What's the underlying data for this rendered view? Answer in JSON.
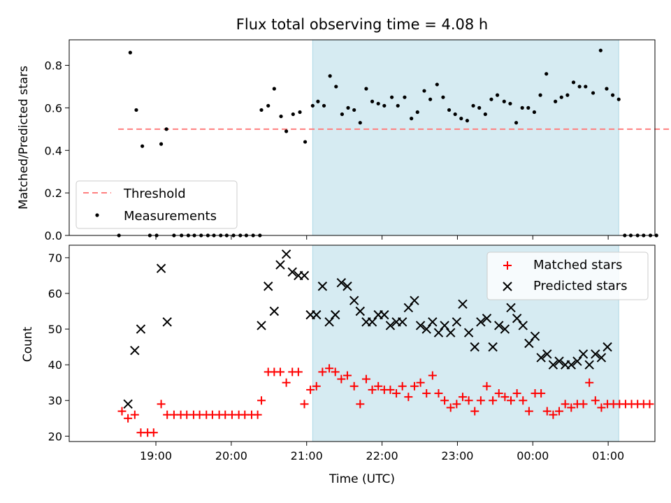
{
  "chart_data": [
    {
      "type": "scatter",
      "title": "Flux total observing time = 4.08 h",
      "xlabel": "",
      "ylabel": "Matched/Predicted stars",
      "ylim": [
        0,
        0.92
      ],
      "yticks": [
        0.0,
        0.2,
        0.4,
        0.6,
        0.8
      ],
      "ytick_labels": [
        "0.0",
        "0.2",
        "0.4",
        "0.6",
        "0.8"
      ],
      "x_unit": "hours since 18:00 UTC",
      "highlight": {
        "start": 3.08,
        "end": 7.14,
        "color": "#add8e6"
      },
      "legend_position": "lower-left",
      "threshold": {
        "name": "Threshold",
        "value": 0.5,
        "x_start": 0.5,
        "x_end": 8.9,
        "color": "#ff7f7f"
      },
      "series": [
        {
          "name": "Measurements",
          "color": "#000000",
          "points": [
            [
              0.51,
              0.0
            ],
            [
              0.66,
              0.86
            ],
            [
              0.74,
              0.59
            ],
            [
              0.82,
              0.42
            ],
            [
              0.92,
              0.0
            ],
            [
              1.01,
              0.0
            ],
            [
              1.07,
              0.43
            ],
            [
              1.14,
              0.5
            ],
            [
              1.24,
              0.0
            ],
            [
              1.34,
              0.0
            ],
            [
              1.43,
              0.0
            ],
            [
              1.51,
              0.0
            ],
            [
              1.6,
              0.0
            ],
            [
              1.69,
              0.0
            ],
            [
              1.77,
              0.0
            ],
            [
              1.86,
              0.0
            ],
            [
              1.94,
              0.0
            ],
            [
              2.03,
              0.0
            ],
            [
              2.12,
              0.0
            ],
            [
              2.2,
              0.0
            ],
            [
              2.29,
              0.0
            ],
            [
              2.38,
              0.0
            ],
            [
              2.4,
              0.59
            ],
            [
              2.49,
              0.61
            ],
            [
              2.57,
              0.69
            ],
            [
              2.66,
              0.56
            ],
            [
              2.73,
              0.49
            ],
            [
              2.82,
              0.57
            ],
            [
              2.91,
              0.58
            ],
            [
              2.98,
              0.44
            ],
            [
              3.08,
              0.61
            ],
            [
              3.15,
              0.63
            ],
            [
              3.23,
              0.61
            ],
            [
              3.31,
              0.75
            ],
            [
              3.39,
              0.7
            ],
            [
              3.47,
              0.57
            ],
            [
              3.55,
              0.6
            ],
            [
              3.63,
              0.59
            ],
            [
              3.71,
              0.53
            ],
            [
              3.79,
              0.69
            ],
            [
              3.87,
              0.63
            ],
            [
              3.95,
              0.62
            ],
            [
              4.03,
              0.61
            ],
            [
              4.13,
              0.65
            ],
            [
              4.21,
              0.61
            ],
            [
              4.3,
              0.65
            ],
            [
              4.39,
              0.55
            ],
            [
              4.47,
              0.58
            ],
            [
              4.56,
              0.68
            ],
            [
              4.64,
              0.64
            ],
            [
              4.73,
              0.71
            ],
            [
              4.81,
              0.65
            ],
            [
              4.89,
              0.59
            ],
            [
              4.97,
              0.57
            ],
            [
              5.05,
              0.55
            ],
            [
              5.13,
              0.54
            ],
            [
              5.21,
              0.61
            ],
            [
              5.29,
              0.6
            ],
            [
              5.37,
              0.57
            ],
            [
              5.45,
              0.64
            ],
            [
              5.53,
              0.66
            ],
            [
              5.62,
              0.63
            ],
            [
              5.7,
              0.62
            ],
            [
              5.78,
              0.53
            ],
            [
              5.86,
              0.6
            ],
            [
              5.94,
              0.6
            ],
            [
              6.02,
              0.58
            ],
            [
              6.1,
              0.66
            ],
            [
              6.18,
              0.76
            ],
            [
              6.3,
              0.63
            ],
            [
              6.38,
              0.65
            ],
            [
              6.46,
              0.66
            ],
            [
              6.54,
              0.72
            ],
            [
              6.62,
              0.7
            ],
            [
              6.7,
              0.7
            ],
            [
              6.8,
              0.67
            ],
            [
              6.9,
              0.87
            ],
            [
              6.98,
              0.69
            ],
            [
              7.06,
              0.66
            ],
            [
              7.14,
              0.64
            ],
            [
              7.22,
              0.0
            ],
            [
              7.3,
              0.0
            ],
            [
              7.39,
              0.0
            ],
            [
              7.47,
              0.0
            ],
            [
              7.56,
              0.0
            ],
            [
              7.64,
              0.0
            ]
          ]
        }
      ]
    },
    {
      "type": "scatter",
      "title": "",
      "xlabel": "Time (UTC)",
      "ylabel": "Count",
      "ylim": [
        18.5,
        73.5
      ],
      "yticks": [
        20,
        30,
        40,
        50,
        60,
        70
      ],
      "ytick_labels": [
        "20",
        "30",
        "40",
        "50",
        "60",
        "70"
      ],
      "xlim": [
        -0.15,
        7.62
      ],
      "xticks": [
        1,
        2,
        3,
        4,
        5,
        6,
        7
      ],
      "xtick_labels": [
        "19:00",
        "20:00",
        "21:00",
        "22:00",
        "23:00",
        "00:00",
        "01:00"
      ],
      "legend_position": "upper-right",
      "series": [
        {
          "name": "Matched stars",
          "color": "#ff0000",
          "marker": "plus",
          "points": [
            [
              0.55,
              27
            ],
            [
              0.63,
              25
            ],
            [
              0.72,
              26
            ],
            [
              0.8,
              21
            ],
            [
              0.89,
              21
            ],
            [
              0.97,
              21
            ],
            [
              1.07,
              29
            ],
            [
              1.15,
              26
            ],
            [
              1.24,
              26
            ],
            [
              1.33,
              26
            ],
            [
              1.41,
              26
            ],
            [
              1.5,
              26
            ],
            [
              1.58,
              26
            ],
            [
              1.67,
              26
            ],
            [
              1.75,
              26
            ],
            [
              1.84,
              26
            ],
            [
              1.92,
              26
            ],
            [
              2.01,
              26
            ],
            [
              2.1,
              26
            ],
            [
              2.18,
              26
            ],
            [
              2.27,
              26
            ],
            [
              2.35,
              26
            ],
            [
              2.4,
              30
            ],
            [
              2.49,
              38
            ],
            [
              2.57,
              38
            ],
            [
              2.65,
              38
            ],
            [
              2.73,
              35
            ],
            [
              2.81,
              38
            ],
            [
              2.89,
              38
            ],
            [
              2.97,
              29
            ],
            [
              3.05,
              33
            ],
            [
              3.13,
              34
            ],
            [
              3.21,
              38
            ],
            [
              3.3,
              39
            ],
            [
              3.38,
              38
            ],
            [
              3.46,
              36
            ],
            [
              3.54,
              37
            ],
            [
              3.63,
              34
            ],
            [
              3.71,
              29
            ],
            [
              3.79,
              36
            ],
            [
              3.87,
              33
            ],
            [
              3.95,
              34
            ],
            [
              4.03,
              33
            ],
            [
              4.11,
              33
            ],
            [
              4.19,
              32
            ],
            [
              4.27,
              34
            ],
            [
              4.35,
              31
            ],
            [
              4.43,
              34
            ],
            [
              4.51,
              35
            ],
            [
              4.59,
              32
            ],
            [
              4.67,
              37
            ],
            [
              4.75,
              32
            ],
            [
              4.83,
              30
            ],
            [
              4.91,
              28
            ],
            [
              4.99,
              29
            ],
            [
              5.07,
              31
            ],
            [
              5.15,
              30
            ],
            [
              5.23,
              27
            ],
            [
              5.31,
              30
            ],
            [
              5.39,
              34
            ],
            [
              5.47,
              30
            ],
            [
              5.55,
              32
            ],
            [
              5.63,
              31
            ],
            [
              5.71,
              30
            ],
            [
              5.79,
              32
            ],
            [
              5.87,
              30
            ],
            [
              5.95,
              27
            ],
            [
              6.03,
              32
            ],
            [
              6.11,
              32
            ],
            [
              6.19,
              27
            ],
            [
              6.27,
              26
            ],
            [
              6.35,
              27
            ],
            [
              6.43,
              29
            ],
            [
              6.51,
              28
            ],
            [
              6.59,
              29
            ],
            [
              6.67,
              29
            ],
            [
              6.75,
              35
            ],
            [
              6.83,
              30
            ],
            [
              6.91,
              28
            ],
            [
              6.99,
              29
            ],
            [
              7.07,
              29
            ],
            [
              7.15,
              29
            ],
            [
              7.23,
              29
            ],
            [
              7.31,
              29
            ],
            [
              7.39,
              29
            ],
            [
              7.47,
              29
            ],
            [
              7.55,
              29
            ]
          ]
        },
        {
          "name": "Predicted stars",
          "color": "#000000",
          "marker": "x",
          "points": [
            [
              0.63,
              29
            ],
            [
              0.72,
              44
            ],
            [
              0.8,
              50
            ],
            [
              1.07,
              67
            ],
            [
              1.15,
              52
            ],
            [
              2.4,
              51
            ],
            [
              2.49,
              62
            ],
            [
              2.57,
              55
            ],
            [
              2.65,
              68
            ],
            [
              2.73,
              71
            ],
            [
              2.81,
              66
            ],
            [
              2.89,
              65
            ],
            [
              2.97,
              65
            ],
            [
              3.05,
              54
            ],
            [
              3.13,
              54
            ],
            [
              3.21,
              62
            ],
            [
              3.3,
              52
            ],
            [
              3.38,
              54
            ],
            [
              3.46,
              63
            ],
            [
              3.54,
              62
            ],
            [
              3.63,
              58
            ],
            [
              3.71,
              55
            ],
            [
              3.79,
              52
            ],
            [
              3.87,
              52
            ],
            [
              3.95,
              54
            ],
            [
              4.03,
              54
            ],
            [
              4.11,
              51
            ],
            [
              4.19,
              52
            ],
            [
              4.27,
              52
            ],
            [
              4.35,
              56
            ],
            [
              4.43,
              58
            ],
            [
              4.51,
              51
            ],
            [
              4.59,
              50
            ],
            [
              4.67,
              52
            ],
            [
              4.75,
              49
            ],
            [
              4.83,
              51
            ],
            [
              4.91,
              49
            ],
            [
              4.99,
              52
            ],
            [
              5.07,
              57
            ],
            [
              5.15,
              49
            ],
            [
              5.23,
              45
            ],
            [
              5.31,
              52
            ],
            [
              5.39,
              53
            ],
            [
              5.47,
              45
            ],
            [
              5.55,
              51
            ],
            [
              5.63,
              50
            ],
            [
              5.71,
              56
            ],
            [
              5.79,
              53
            ],
            [
              5.87,
              51
            ],
            [
              5.95,
              46
            ],
            [
              6.03,
              48
            ],
            [
              6.11,
              42
            ],
            [
              6.19,
              43
            ],
            [
              6.27,
              40
            ],
            [
              6.35,
              41
            ],
            [
              6.43,
              40
            ],
            [
              6.51,
              40
            ],
            [
              6.59,
              41
            ],
            [
              6.67,
              43
            ],
            [
              6.75,
              40
            ],
            [
              6.83,
              43
            ],
            [
              6.91,
              42
            ],
            [
              6.99,
              45
            ]
          ]
        }
      ]
    }
  ]
}
